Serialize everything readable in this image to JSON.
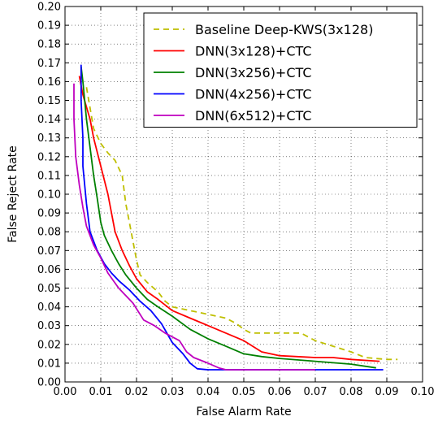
{
  "chart_data": {
    "type": "line",
    "title": "",
    "xlabel": "False Alarm Rate",
    "ylabel": "False Reject Rate",
    "xlim": [
      0.0,
      0.1
    ],
    "ylim": [
      0.0,
      0.2
    ],
    "x_ticks": [
      "0.00",
      "0.01",
      "0.02",
      "0.03",
      "0.04",
      "0.05",
      "0.06",
      "0.07",
      "0.08",
      "0.09",
      "0.10"
    ],
    "y_ticks": [
      "0.00",
      "0.01",
      "0.02",
      "0.03",
      "0.04",
      "0.05",
      "0.06",
      "0.07",
      "0.08",
      "0.09",
      "0.10",
      "0.11",
      "0.12",
      "0.13",
      "0.14",
      "0.15",
      "0.16",
      "0.17",
      "0.18",
      "0.19",
      "0.20"
    ],
    "grid": true,
    "legend_position": "top-right",
    "series": [
      {
        "name": "Baseline Deep-KWS(3x128)",
        "color": "#bfbf00",
        "dash": "dashed",
        "points": [
          [
            0.006,
            0.157
          ],
          [
            0.008,
            0.135
          ],
          [
            0.01,
            0.127
          ],
          [
            0.012,
            0.122
          ],
          [
            0.014,
            0.118
          ],
          [
            0.016,
            0.11
          ],
          [
            0.017,
            0.095
          ],
          [
            0.018,
            0.085
          ],
          [
            0.019,
            0.075
          ],
          [
            0.02,
            0.065
          ],
          [
            0.021,
            0.057
          ],
          [
            0.023,
            0.053
          ],
          [
            0.026,
            0.048
          ],
          [
            0.028,
            0.043
          ],
          [
            0.03,
            0.04
          ],
          [
            0.035,
            0.038
          ],
          [
            0.04,
            0.036
          ],
          [
            0.045,
            0.034
          ],
          [
            0.048,
            0.031
          ],
          [
            0.05,
            0.028
          ],
          [
            0.052,
            0.026
          ],
          [
            0.06,
            0.026
          ],
          [
            0.066,
            0.026
          ],
          [
            0.07,
            0.022
          ],
          [
            0.075,
            0.019
          ],
          [
            0.08,
            0.016
          ],
          [
            0.084,
            0.013
          ],
          [
            0.09,
            0.012
          ],
          [
            0.093,
            0.012
          ]
        ]
      },
      {
        "name": "DNN(3x128)+CTC",
        "color": "#ff0000",
        "dash": "solid",
        "points": [
          [
            0.004,
            0.163
          ],
          [
            0.005,
            0.153
          ],
          [
            0.007,
            0.14
          ],
          [
            0.008,
            0.13
          ],
          [
            0.01,
            0.115
          ],
          [
            0.012,
            0.1
          ],
          [
            0.013,
            0.09
          ],
          [
            0.014,
            0.08
          ],
          [
            0.016,
            0.07
          ],
          [
            0.018,
            0.062
          ],
          [
            0.02,
            0.055
          ],
          [
            0.023,
            0.048
          ],
          [
            0.026,
            0.044
          ],
          [
            0.03,
            0.038
          ],
          [
            0.035,
            0.034
          ],
          [
            0.04,
            0.03
          ],
          [
            0.045,
            0.026
          ],
          [
            0.05,
            0.022
          ],
          [
            0.055,
            0.016
          ],
          [
            0.06,
            0.014
          ],
          [
            0.07,
            0.013
          ],
          [
            0.075,
            0.013
          ],
          [
            0.08,
            0.012
          ],
          [
            0.088,
            0.011
          ]
        ]
      },
      {
        "name": "DNN(3x256)+CTC",
        "color": "#008000",
        "dash": "solid",
        "points": [
          [
            0.0045,
            0.168
          ],
          [
            0.005,
            0.16
          ],
          [
            0.006,
            0.14
          ],
          [
            0.007,
            0.125
          ],
          [
            0.008,
            0.11
          ],
          [
            0.009,
            0.098
          ],
          [
            0.01,
            0.085
          ],
          [
            0.011,
            0.078
          ],
          [
            0.013,
            0.07
          ],
          [
            0.015,
            0.063
          ],
          [
            0.017,
            0.057
          ],
          [
            0.02,
            0.05
          ],
          [
            0.023,
            0.044
          ],
          [
            0.026,
            0.04
          ],
          [
            0.03,
            0.035
          ],
          [
            0.035,
            0.028
          ],
          [
            0.04,
            0.023
          ],
          [
            0.045,
            0.019
          ],
          [
            0.05,
            0.015
          ],
          [
            0.055,
            0.0135
          ],
          [
            0.06,
            0.0125
          ],
          [
            0.07,
            0.011
          ],
          [
            0.08,
            0.0095
          ],
          [
            0.087,
            0.0075
          ]
        ]
      },
      {
        "name": "DNN(4x256)+CTC",
        "color": "#0000ff",
        "dash": "solid",
        "points": [
          [
            0.0045,
            0.169
          ],
          [
            0.0045,
            0.15
          ],
          [
            0.005,
            0.13
          ],
          [
            0.005,
            0.115
          ],
          [
            0.006,
            0.095
          ],
          [
            0.007,
            0.08
          ],
          [
            0.009,
            0.07
          ],
          [
            0.011,
            0.063
          ],
          [
            0.013,
            0.058
          ],
          [
            0.015,
            0.054
          ],
          [
            0.018,
            0.049
          ],
          [
            0.021,
            0.043
          ],
          [
            0.024,
            0.038
          ],
          [
            0.027,
            0.031
          ],
          [
            0.03,
            0.021
          ],
          [
            0.033,
            0.015
          ],
          [
            0.035,
            0.01
          ],
          [
            0.037,
            0.007
          ],
          [
            0.04,
            0.0065
          ],
          [
            0.06,
            0.0065
          ],
          [
            0.08,
            0.0065
          ],
          [
            0.089,
            0.0065
          ]
        ]
      },
      {
        "name": "DNN(6x512)+CTC",
        "color": "#bf00bf",
        "dash": "solid",
        "points": [
          [
            0.0025,
            0.159
          ],
          [
            0.0025,
            0.14
          ],
          [
            0.003,
            0.12
          ],
          [
            0.004,
            0.105
          ],
          [
            0.005,
            0.093
          ],
          [
            0.006,
            0.083
          ],
          [
            0.008,
            0.073
          ],
          [
            0.01,
            0.066
          ],
          [
            0.012,
            0.058
          ],
          [
            0.015,
            0.05
          ],
          [
            0.017,
            0.046
          ],
          [
            0.019,
            0.042
          ],
          [
            0.022,
            0.033
          ],
          [
            0.025,
            0.03
          ],
          [
            0.028,
            0.026
          ],
          [
            0.032,
            0.022
          ],
          [
            0.034,
            0.016
          ],
          [
            0.036,
            0.013
          ],
          [
            0.04,
            0.01
          ],
          [
            0.043,
            0.0075
          ],
          [
            0.045,
            0.0065
          ],
          [
            0.06,
            0.0065
          ],
          [
            0.07,
            0.0065
          ]
        ]
      }
    ]
  }
}
